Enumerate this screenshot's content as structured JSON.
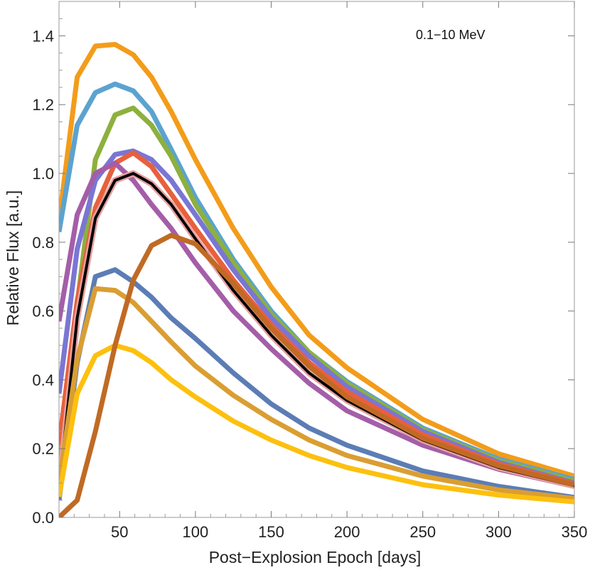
{
  "chart_data": {
    "type": "line",
    "title": "",
    "annotation": "0.1−10 MeV",
    "xlabel": "Post−Explosion Epoch [days]",
    "ylabel": "Relative Flux [a.u.]",
    "xlim": [
      10,
      350
    ],
    "ylim": [
      0,
      1.5
    ],
    "xticks": [
      50,
      100,
      150,
      200,
      250,
      300,
      350
    ],
    "yticks": [
      0.0,
      0.2,
      0.4,
      0.6,
      0.8,
      1.0,
      1.2,
      1.4
    ],
    "ytick_labels": [
      "0.0",
      "0.2",
      "0.4",
      "0.6",
      "0.8",
      "1.0",
      "1.2",
      "1.4"
    ],
    "grid": false,
    "series": [
      {
        "name": "orange",
        "color": "#F39C1A",
        "x": [
          10,
          22,
          34,
          47,
          59,
          71,
          84,
          100,
          125,
          150,
          175,
          200,
          250,
          300,
          350
        ],
        "y": [
          0.86,
          1.28,
          1.37,
          1.375,
          1.345,
          1.28,
          1.18,
          1.04,
          0.84,
          0.67,
          0.53,
          0.435,
          0.285,
          0.185,
          0.12
        ]
      },
      {
        "name": "light-blue",
        "color": "#5BA3CF",
        "x": [
          10,
          22,
          34,
          47,
          59,
          71,
          84,
          100,
          125,
          150,
          175,
          200,
          250,
          300,
          350
        ],
        "y": [
          0.83,
          1.14,
          1.235,
          1.26,
          1.24,
          1.18,
          1.07,
          0.93,
          0.75,
          0.6,
          0.48,
          0.395,
          0.26,
          0.17,
          0.11
        ]
      },
      {
        "name": "green",
        "color": "#8DB03E",
        "x": [
          10,
          22,
          34,
          47,
          59,
          71,
          84,
          100,
          125,
          150,
          175,
          200,
          250,
          300,
          350
        ],
        "y": [
          0.17,
          0.62,
          1.04,
          1.17,
          1.19,
          1.14,
          1.05,
          0.91,
          0.74,
          0.59,
          0.48,
          0.39,
          0.255,
          0.165,
          0.105
        ]
      },
      {
        "name": "blue-purple",
        "color": "#7A76D4",
        "x": [
          10,
          22,
          34,
          47,
          59,
          71,
          84,
          100,
          125,
          150,
          175,
          200,
          250,
          300,
          350
        ],
        "y": [
          0.36,
          0.78,
          0.98,
          1.055,
          1.065,
          1.04,
          0.98,
          0.88,
          0.72,
          0.58,
          0.47,
          0.38,
          0.25,
          0.16,
          0.1
        ]
      },
      {
        "name": "red",
        "color": "#E8603C",
        "x": [
          10,
          22,
          34,
          47,
          59,
          71,
          84,
          100,
          125,
          150,
          175,
          200,
          250,
          300,
          350
        ],
        "y": [
          0.21,
          0.63,
          0.9,
          1.03,
          1.06,
          1.02,
          0.94,
          0.84,
          0.69,
          0.56,
          0.45,
          0.365,
          0.24,
          0.155,
          0.098
        ]
      },
      {
        "name": "purple",
        "color": "#A45EA8",
        "x": [
          10,
          22,
          34,
          47,
          59,
          71,
          84,
          100,
          125,
          150,
          175,
          200,
          250,
          300,
          350
        ],
        "y": [
          0.57,
          0.88,
          1.0,
          1.03,
          0.98,
          0.91,
          0.84,
          0.74,
          0.6,
          0.49,
          0.39,
          0.31,
          0.21,
          0.14,
          0.09
        ]
      },
      {
        "name": "black",
        "color": "#000000",
        "x": [
          10,
          22,
          34,
          47,
          59,
          71,
          84,
          100,
          125,
          150,
          175,
          200,
          250,
          300,
          350
        ],
        "y": [
          0.08,
          0.58,
          0.87,
          0.98,
          1.0,
          0.97,
          0.91,
          0.81,
          0.66,
          0.53,
          0.42,
          0.34,
          0.225,
          0.145,
          0.092
        ]
      },
      {
        "name": "steel-blue",
        "color": "#5B7DB5",
        "x": [
          10,
          22,
          34,
          47,
          59,
          71,
          84,
          100,
          125,
          150,
          175,
          200,
          250,
          300,
          350
        ],
        "y": [
          0.05,
          0.45,
          0.7,
          0.72,
          0.685,
          0.64,
          0.58,
          0.52,
          0.42,
          0.33,
          0.26,
          0.21,
          0.135,
          0.09,
          0.058
        ]
      },
      {
        "name": "tan",
        "color": "#DA9E32",
        "x": [
          10,
          22,
          34,
          47,
          59,
          71,
          84,
          100,
          125,
          150,
          175,
          200,
          250,
          300,
          350
        ],
        "y": [
          0.1,
          0.46,
          0.665,
          0.66,
          0.625,
          0.57,
          0.51,
          0.44,
          0.355,
          0.285,
          0.225,
          0.18,
          0.12,
          0.08,
          0.055
        ]
      },
      {
        "name": "yellow",
        "color": "#FDC00E",
        "x": [
          10,
          22,
          34,
          47,
          59,
          71,
          84,
          100,
          125,
          150,
          175,
          200,
          250,
          300,
          350
        ],
        "y": [
          0.06,
          0.36,
          0.47,
          0.5,
          0.485,
          0.45,
          0.4,
          0.35,
          0.28,
          0.225,
          0.18,
          0.145,
          0.095,
          0.065,
          0.045
        ]
      },
      {
        "name": "brown",
        "color": "#C06A24",
        "x": [
          10,
          22,
          34,
          47,
          59,
          71,
          84,
          100,
          125,
          150,
          175,
          200,
          250,
          300,
          350
        ],
        "y": [
          0.0,
          0.05,
          0.25,
          0.5,
          0.69,
          0.79,
          0.82,
          0.795,
          0.68,
          0.55,
          0.44,
          0.35,
          0.23,
          0.15,
          0.095
        ]
      }
    ]
  }
}
